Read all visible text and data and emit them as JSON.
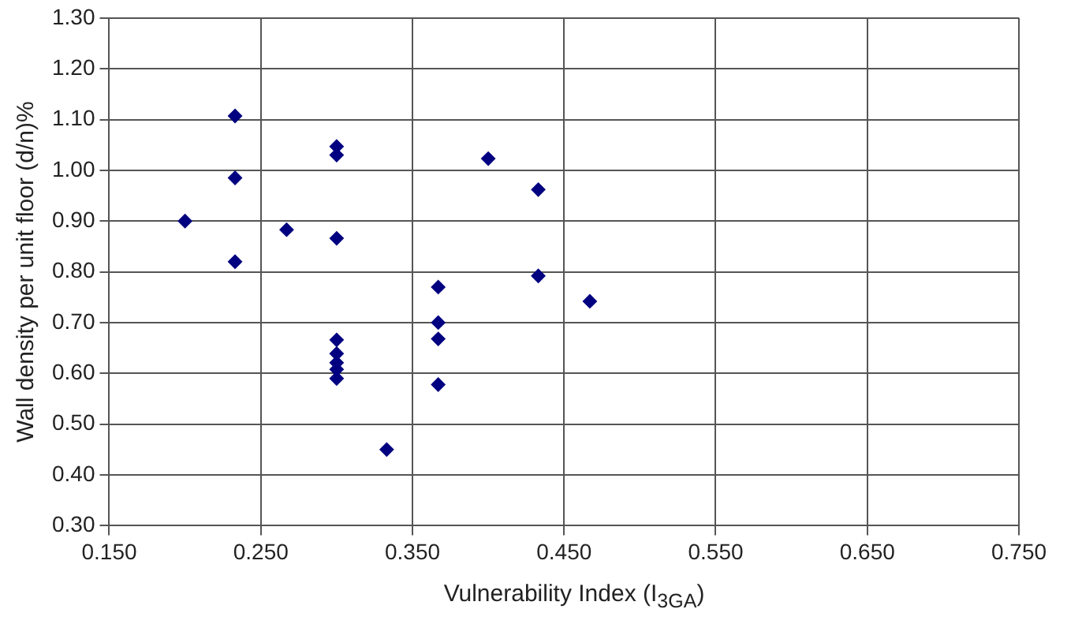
{
  "chart_data": {
    "type": "scatter",
    "xlabel": "Vulnerability Index (I$_{3GA}$)",
    "ylabel": "Wall density per unit floor (d/n)%",
    "series": [
      {
        "color": "#000080",
        "x": [
          0.2,
          0.233,
          0.233,
          0.233,
          0.267,
          0.3,
          0.3,
          0.3,
          0.3,
          0.3,
          0.3,
          0.3,
          0.3,
          0.333,
          0.367,
          0.367,
          0.367,
          0.367,
          0.4,
          0.433,
          0.433,
          0.467
        ],
        "values": [
          0.9,
          1.107,
          0.985,
          0.82,
          0.883,
          1.047,
          1.03,
          0.866,
          0.666,
          0.639,
          0.621,
          0.608,
          0.59,
          0.45,
          0.77,
          0.7,
          0.668,
          0.578,
          1.023,
          0.962,
          0.792,
          0.742
        ]
      }
    ],
    "xlim": [
      0.15,
      0.75
    ],
    "xticks": [
      {
        "value": 0.15,
        "label": "0.150"
      },
      {
        "value": 0.25,
        "label": "0.250"
      },
      {
        "value": 0.35,
        "label": "0.350"
      },
      {
        "value": 0.45,
        "label": "0.450"
      },
      {
        "value": 0.55,
        "label": "0.550"
      },
      {
        "value": 0.65,
        "label": "0.650"
      },
      {
        "value": 0.75,
        "label": "0.750"
      }
    ],
    "ylim": [
      0.3,
      1.3
    ],
    "yticks": [
      {
        "value": 0.3,
        "label": "0.30"
      },
      {
        "value": 0.4,
        "label": "0.40"
      },
      {
        "value": 0.5,
        "label": "0.50"
      },
      {
        "value": 0.6,
        "label": "0.60"
      },
      {
        "value": 0.7,
        "label": "0.70"
      },
      {
        "value": 0.8,
        "label": "0.80"
      },
      {
        "value": 0.9,
        "label": "0.90"
      },
      {
        "value": 1.0,
        "label": "1.00"
      },
      {
        "value": 1.1,
        "label": "1.10"
      },
      {
        "value": 1.2,
        "label": "1.20"
      },
      {
        "value": 1.3,
        "label": "1.30"
      }
    ],
    "grid": true,
    "marker": "diamond",
    "legend": false
  }
}
